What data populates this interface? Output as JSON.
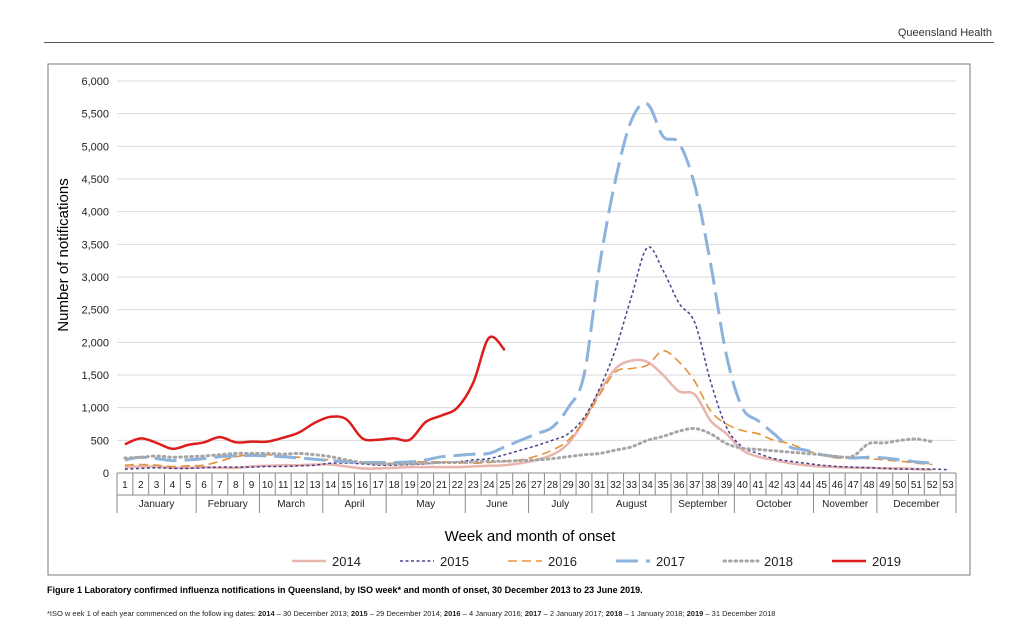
{
  "header": {
    "label": "Queensland Health"
  },
  "chart_data": {
    "type": "line",
    "title": "",
    "xlabel": "Week and month of onset",
    "ylabel": "Number of notifications",
    "ylim": [
      0,
      6000
    ],
    "ytick_values": [
      0,
      500,
      1000,
      1500,
      2000,
      2500,
      3000,
      3500,
      4000,
      4500,
      5000,
      5500,
      6000
    ],
    "ytick_labels": [
      "0",
      "500",
      "1,000",
      "1,500",
      "2,000",
      "2,500",
      "3,000",
      "3,500",
      "4,000",
      "4,500",
      "5,000",
      "5,500",
      "6,000"
    ],
    "weeks": [
      "1",
      "2",
      "3",
      "4",
      "5",
      "6",
      "7",
      "8",
      "9",
      "10",
      "11",
      "12",
      "13",
      "14",
      "15",
      "16",
      "17",
      "18",
      "19",
      "20",
      "21",
      "22",
      "23",
      "24",
      "25",
      "26",
      "27",
      "28",
      "29",
      "30",
      "31",
      "32",
      "33",
      "34",
      "35",
      "36",
      "37",
      "38",
      "39",
      "40",
      "41",
      "42",
      "43",
      "44",
      "45",
      "46",
      "47",
      "48",
      "49",
      "50",
      "51",
      "52",
      "53"
    ],
    "months": [
      {
        "name": "January",
        "start": 1,
        "end": 5
      },
      {
        "name": "February",
        "start": 6,
        "end": 9
      },
      {
        "name": "March",
        "start": 10,
        "end": 13
      },
      {
        "name": "April",
        "start": 14,
        "end": 17
      },
      {
        "name": "May",
        "start": 18,
        "end": 22
      },
      {
        "name": "June",
        "start": 23,
        "end": 26
      },
      {
        "name": "July",
        "start": 27,
        "end": 30
      },
      {
        "name": "August",
        "start": 31,
        "end": 35
      },
      {
        "name": "September",
        "start": 36,
        "end": 39
      },
      {
        "name": "October",
        "start": 40,
        "end": 44
      },
      {
        "name": "November",
        "start": 45,
        "end": 48
      },
      {
        "name": "December",
        "start": 49,
        "end": 53
      }
    ],
    "legend_position": "bottom",
    "grid": true,
    "series": [
      {
        "name": "2014",
        "color": "#e8b4ae",
        "dash": "solid",
        "width": 2.5,
        "values": [
          90,
          100,
          100,
          80,
          80,
          90,
          80,
          80,
          100,
          110,
          120,
          120,
          130,
          130,
          100,
          70,
          70,
          80,
          90,
          90,
          90,
          90,
          100,
          110,
          120,
          150,
          200,
          280,
          450,
          800,
          1250,
          1600,
          1720,
          1700,
          1500,
          1250,
          1200,
          800,
          600,
          350,
          250,
          200,
          150,
          120,
          100,
          90,
          80,
          80,
          70,
          70,
          60,
          50,
          null
        ]
      },
      {
        "name": "2015",
        "color": "#4b3f8c",
        "dash": "3,2.5",
        "width": 1.5,
        "values": [
          60,
          70,
          80,
          70,
          70,
          80,
          90,
          90,
          90,
          100,
          100,
          110,
          120,
          150,
          150,
          140,
          120,
          120,
          130,
          140,
          160,
          170,
          200,
          220,
          280,
          350,
          420,
          500,
          600,
          850,
          1300,
          1900,
          2700,
          3450,
          3100,
          2600,
          2300,
          1400,
          700,
          400,
          300,
          220,
          180,
          150,
          120,
          100,
          90,
          80,
          70,
          60,
          60,
          60,
          50
        ]
      },
      {
        "name": "2016",
        "color": "#e69138",
        "dash": "9,5",
        "width": 1.6,
        "values": [
          120,
          130,
          120,
          100,
          110,
          120,
          180,
          250,
          280,
          280,
          260,
          240,
          220,
          200,
          180,
          160,
          150,
          150,
          170,
          170,
          170,
          160,
          150,
          160,
          180,
          200,
          260,
          350,
          500,
          800,
          1200,
          1550,
          1600,
          1650,
          1870,
          1700,
          1400,
          950,
          750,
          650,
          600,
          500,
          450,
          350,
          280,
          230,
          230,
          220,
          200,
          180,
          150,
          130,
          null
        ]
      },
      {
        "name": "2017",
        "color": "#8db3dc",
        "dash": "22,8",
        "width": 3,
        "values": [
          200,
          240,
          220,
          190,
          200,
          220,
          250,
          260,
          270,
          260,
          250,
          230,
          210,
          190,
          170,
          160,
          160,
          160,
          170,
          200,
          250,
          270,
          290,
          300,
          400,
          500,
          600,
          700,
          1000,
          1500,
          3200,
          4500,
          5400,
          5650,
          5150,
          5050,
          4400,
          3200,
          1800,
          1000,
          800,
          600,
          400,
          350,
          280,
          250,
          230,
          240,
          230,
          200,
          170,
          150,
          null
        ]
      },
      {
        "name": "2018",
        "color": "#a6a6a6",
        "dash": "1.5,4",
        "width": 3,
        "values": [
          230,
          240,
          260,
          240,
          250,
          260,
          280,
          300,
          300,
          300,
          290,
          300,
          280,
          250,
          200,
          160,
          140,
          140,
          140,
          150,
          160,
          160,
          170,
          180,
          180,
          190,
          200,
          220,
          250,
          280,
          300,
          350,
          400,
          500,
          560,
          640,
          680,
          600,
          450,
          380,
          360,
          340,
          320,
          300,
          280,
          250,
          260,
          450,
          460,
          500,
          520,
          480,
          null
        ]
      },
      {
        "name": "2019",
        "color": "#dd1c1c",
        "dash": "solid",
        "width": 2.5,
        "values": [
          440,
          530,
          460,
          370,
          430,
          470,
          550,
          470,
          480,
          480,
          540,
          620,
          770,
          860,
          820,
          530,
          510,
          530,
          510,
          780,
          880,
          1000,
          1380,
          2070,
          1880,
          null,
          null,
          null,
          null,
          null,
          null,
          null,
          null,
          null,
          null,
          null,
          null,
          null,
          null,
          null,
          null,
          null,
          null,
          null,
          null,
          null,
          null,
          null,
          null,
          null,
          null,
          null,
          null
        ]
      }
    ]
  },
  "caption": "Figure 1  Laboratory confirmed influenza notifications in Queensland, by ISO week* and month of onset, 30 December 2013 to 23 June 2019.",
  "footnote": {
    "intro": "*ISO w eek 1 of each year commenced on the follow ing dates:  ",
    "items": [
      {
        "year": "2014",
        "date": " – 30 December 2013; "
      },
      {
        "year": "2015",
        "date": " – 29 December 2014; "
      },
      {
        "year": "2016",
        "date": " – 4 January 2016; "
      },
      {
        "year": "2017",
        "date": " – 2 January 2017; "
      },
      {
        "year": "2018",
        "date": " – 1 January 2018; "
      },
      {
        "year": "2019",
        "date": " – 31 December 2018"
      }
    ]
  }
}
